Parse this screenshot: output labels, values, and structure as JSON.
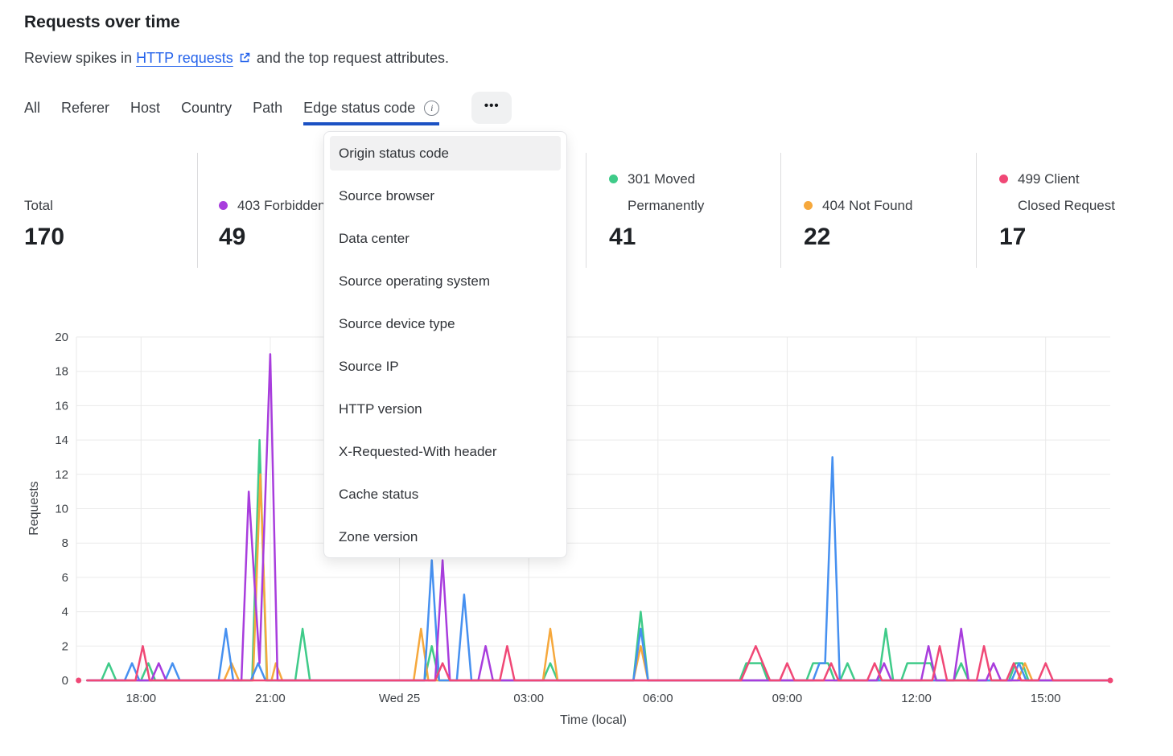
{
  "header": {
    "title": "Requests over time",
    "subtitle_prefix": "Review spikes in",
    "link_text": "HTTP requests",
    "subtitle_suffix": "and the top request attributes."
  },
  "tabs": {
    "items": [
      {
        "label": "All",
        "active": false,
        "info_icon": false
      },
      {
        "label": "Referer",
        "active": false,
        "info_icon": false
      },
      {
        "label": "Host",
        "active": false,
        "info_icon": false
      },
      {
        "label": "Country",
        "active": false,
        "info_icon": false
      },
      {
        "label": "Path",
        "active": false,
        "info_icon": false
      },
      {
        "label": "Edge status code",
        "active": true,
        "info_icon": true
      }
    ],
    "info_glyph": "i",
    "more_icon": "•••"
  },
  "dropdown_menu": {
    "items": [
      {
        "label": "Origin status code",
        "highlighted": true
      },
      {
        "label": "Source browser",
        "highlighted": false
      },
      {
        "label": "Data center",
        "highlighted": false
      },
      {
        "label": "Source operating system",
        "highlighted": false
      },
      {
        "label": "Source device type",
        "highlighted": false
      },
      {
        "label": "Source IP",
        "highlighted": false
      },
      {
        "label": "HTTP version",
        "highlighted": false
      },
      {
        "label": "X-Requested-With header",
        "highlighted": false
      },
      {
        "label": "Cache status",
        "highlighted": false
      },
      {
        "label": "Zone version",
        "highlighted": false
      }
    ]
  },
  "stats": {
    "total": {
      "label": "Total",
      "value": "170"
    },
    "cards": [
      {
        "label_lines": [
          "403 Forbidden"
        ],
        "value": "49",
        "color": "#a83ddd"
      },
      {
        "label_lines": [
          "301 Moved",
          "Permanently"
        ],
        "value": "41",
        "color": "#3fcb89"
      },
      {
        "label_lines": [
          "404 Not Found"
        ],
        "value": "22",
        "color": "#f6a83c"
      },
      {
        "label_lines": [
          "499 Client",
          "Closed Request"
        ],
        "value": "17",
        "color": "#f04876"
      }
    ]
  },
  "chart_data": {
    "type": "line",
    "xlabel": "Time (local)",
    "ylabel": "Requests",
    "ylim": [
      0,
      20
    ],
    "ytick_step": 2,
    "x_domain_hours": [
      16.5,
      40.5
    ],
    "grid": true,
    "xticks": [
      {
        "t": 18,
        "label": "18:00"
      },
      {
        "t": 21,
        "label": "21:00"
      },
      {
        "t": 24,
        "label": "Wed 25"
      },
      {
        "t": 27,
        "label": "03:00"
      },
      {
        "t": 30,
        "label": "06:00"
      },
      {
        "t": 33,
        "label": "09:00"
      },
      {
        "t": 36,
        "label": "12:00"
      },
      {
        "t": 39,
        "label": "15:00"
      }
    ],
    "series": [
      {
        "name": "301 Moved Permanently",
        "color": "#3fcb89",
        "points": [
          [
            16.75,
            0
          ],
          [
            17.08,
            0
          ],
          [
            17.25,
            1
          ],
          [
            17.42,
            0
          ],
          [
            18.0,
            0
          ],
          [
            18.17,
            1
          ],
          [
            18.33,
            0
          ],
          [
            20.58,
            0
          ],
          [
            20.75,
            14
          ],
          [
            20.92,
            0
          ],
          [
            21.58,
            0
          ],
          [
            21.75,
            3
          ],
          [
            21.92,
            0
          ],
          [
            24.58,
            0
          ],
          [
            24.75,
            2
          ],
          [
            24.92,
            0
          ],
          [
            27.33,
            0
          ],
          [
            27.5,
            1
          ],
          [
            27.67,
            0
          ],
          [
            29.43,
            0
          ],
          [
            29.6,
            4
          ],
          [
            29.77,
            0
          ],
          [
            31.9,
            0
          ],
          [
            32.05,
            1
          ],
          [
            32.4,
            1
          ],
          [
            32.55,
            0
          ],
          [
            33.45,
            0
          ],
          [
            33.6,
            1
          ],
          [
            33.95,
            1
          ],
          [
            34.1,
            0
          ],
          [
            34.23,
            0
          ],
          [
            34.4,
            1
          ],
          [
            34.57,
            0
          ],
          [
            35.12,
            0
          ],
          [
            35.29,
            3
          ],
          [
            35.46,
            0
          ],
          [
            35.65,
            0
          ],
          [
            35.79,
            1
          ],
          [
            36.33,
            1
          ],
          [
            36.47,
            0
          ],
          [
            36.87,
            0
          ],
          [
            37.04,
            1
          ],
          [
            37.21,
            0
          ],
          [
            38.15,
            0
          ],
          [
            38.3,
            1
          ],
          [
            38.46,
            1
          ],
          [
            38.6,
            0
          ],
          [
            40.45,
            0
          ]
        ]
      },
      {
        "name": "404 Not Found",
        "color": "#f6a83c",
        "points": [
          [
            16.75,
            0
          ],
          [
            19.93,
            0
          ],
          [
            20.1,
            1
          ],
          [
            20.27,
            0
          ],
          [
            20.6,
            0
          ],
          [
            20.77,
            12
          ],
          [
            20.93,
            0
          ],
          [
            21.03,
            0
          ],
          [
            21.13,
            1
          ],
          [
            21.28,
            0
          ],
          [
            24.33,
            0
          ],
          [
            24.5,
            3
          ],
          [
            24.67,
            0
          ],
          [
            27.33,
            0
          ],
          [
            27.5,
            3
          ],
          [
            27.67,
            0
          ],
          [
            29.43,
            0
          ],
          [
            29.6,
            2
          ],
          [
            29.77,
            0
          ],
          [
            38.35,
            0
          ],
          [
            38.52,
            1
          ],
          [
            38.69,
            0
          ],
          [
            40.45,
            0
          ]
        ]
      },
      {
        "name": "",
        "color": "#4690f0",
        "points": [
          [
            16.75,
            0
          ],
          [
            17.62,
            0
          ],
          [
            17.79,
            1
          ],
          [
            17.96,
            0
          ],
          [
            18.56,
            0
          ],
          [
            18.73,
            1
          ],
          [
            18.9,
            0
          ],
          [
            19.8,
            0
          ],
          [
            19.97,
            3
          ],
          [
            20.14,
            0
          ],
          [
            20.55,
            0
          ],
          [
            20.72,
            1
          ],
          [
            20.89,
            0
          ],
          [
            24.58,
            0
          ],
          [
            24.75,
            7
          ],
          [
            24.92,
            0
          ],
          [
            25.33,
            0
          ],
          [
            25.5,
            5
          ],
          [
            25.67,
            0
          ],
          [
            29.43,
            0
          ],
          [
            29.6,
            3
          ],
          [
            29.77,
            0
          ],
          [
            33.6,
            0
          ],
          [
            33.75,
            1
          ],
          [
            33.88,
            1
          ],
          [
            34.05,
            13
          ],
          [
            34.22,
            0
          ],
          [
            38.21,
            0
          ],
          [
            38.38,
            1
          ],
          [
            38.55,
            0
          ],
          [
            40.45,
            0
          ]
        ]
      },
      {
        "name": "403 Forbidden",
        "color": "#a83ddd",
        "points": [
          [
            16.75,
            0
          ],
          [
            18.24,
            0
          ],
          [
            18.41,
            1
          ],
          [
            18.58,
            0
          ],
          [
            20.33,
            0
          ],
          [
            20.5,
            11
          ],
          [
            20.75,
            1
          ],
          [
            21.0,
            19
          ],
          [
            21.17,
            0
          ],
          [
            24.83,
            0
          ],
          [
            25.0,
            7
          ],
          [
            25.17,
            0
          ],
          [
            25.83,
            0
          ],
          [
            26.0,
            2
          ],
          [
            26.17,
            0
          ],
          [
            35.08,
            0
          ],
          [
            35.25,
            1
          ],
          [
            35.42,
            0
          ],
          [
            36.11,
            0
          ],
          [
            36.28,
            2
          ],
          [
            36.45,
            0
          ],
          [
            36.87,
            0
          ],
          [
            37.04,
            3
          ],
          [
            37.21,
            0
          ],
          [
            37.62,
            0
          ],
          [
            37.79,
            1
          ],
          [
            37.96,
            0
          ],
          [
            40.45,
            0
          ]
        ]
      },
      {
        "name": "499 Client Closed Request",
        "color": "#f04876",
        "points": [
          [
            16.75,
            0
          ],
          [
            17.87,
            0
          ],
          [
            18.04,
            2
          ],
          [
            18.2,
            0
          ],
          [
            24.83,
            0
          ],
          [
            25.0,
            1
          ],
          [
            25.17,
            0
          ],
          [
            26.33,
            0
          ],
          [
            26.5,
            2
          ],
          [
            26.67,
            0
          ],
          [
            31.93,
            0
          ],
          [
            32.27,
            2
          ],
          [
            32.6,
            0
          ],
          [
            32.83,
            0
          ],
          [
            33.0,
            1
          ],
          [
            33.17,
            0
          ],
          [
            33.85,
            0
          ],
          [
            34.02,
            1
          ],
          [
            34.19,
            0
          ],
          [
            34.86,
            0
          ],
          [
            35.03,
            1
          ],
          [
            35.2,
            0
          ],
          [
            36.37,
            0
          ],
          [
            36.54,
            2
          ],
          [
            36.71,
            0
          ],
          [
            37.4,
            0
          ],
          [
            37.57,
            2
          ],
          [
            37.74,
            0
          ],
          [
            38.09,
            0
          ],
          [
            38.26,
            1
          ],
          [
            38.43,
            0
          ],
          [
            38.83,
            0
          ],
          [
            39.0,
            1
          ],
          [
            39.17,
            0
          ],
          [
            40.42,
            0
          ]
        ]
      }
    ],
    "endpoint_dots": {
      "series": "499 Client Closed Request",
      "color": "#f04876",
      "points": [
        [
          16.55,
          0
        ],
        [
          40.5,
          0
        ]
      ]
    }
  }
}
